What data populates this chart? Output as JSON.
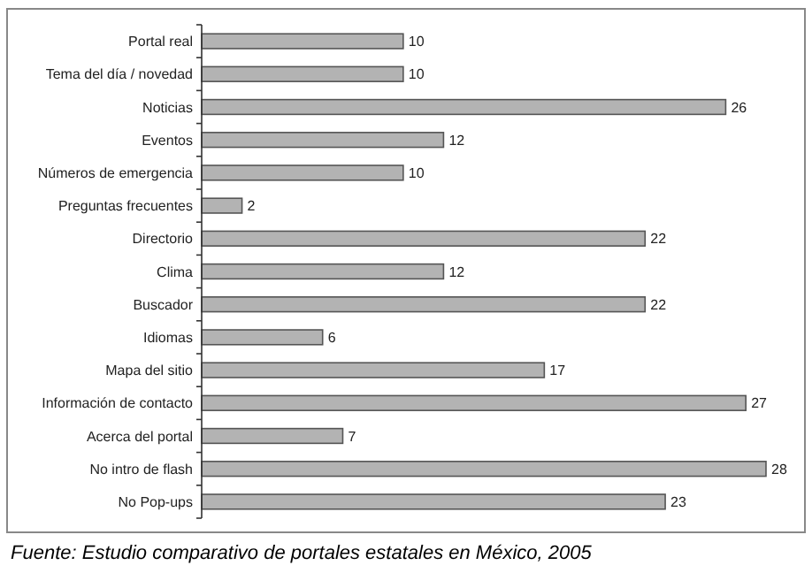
{
  "chart_data": {
    "type": "bar",
    "orientation": "horizontal",
    "data_labels": true,
    "color": "#b3b3b3",
    "categories": [
      "Portal real",
      "Tema del día / novedad",
      "Noticias",
      "Eventos",
      "Números de emergencia",
      "Preguntas frecuentes",
      "Directorio",
      "Clima",
      "Buscador",
      "Idiomas",
      "Mapa del sitio",
      "Información de contacto",
      "Acerca del portal",
      "No intro de flash",
      "No Pop-ups"
    ],
    "values": [
      10,
      10,
      26,
      12,
      10,
      2,
      22,
      12,
      22,
      6,
      17,
      27,
      7,
      28,
      23
    ],
    "annotations": [
      "Fuente: Estudio comparativo de portales estatales en México, 2005"
    ]
  }
}
